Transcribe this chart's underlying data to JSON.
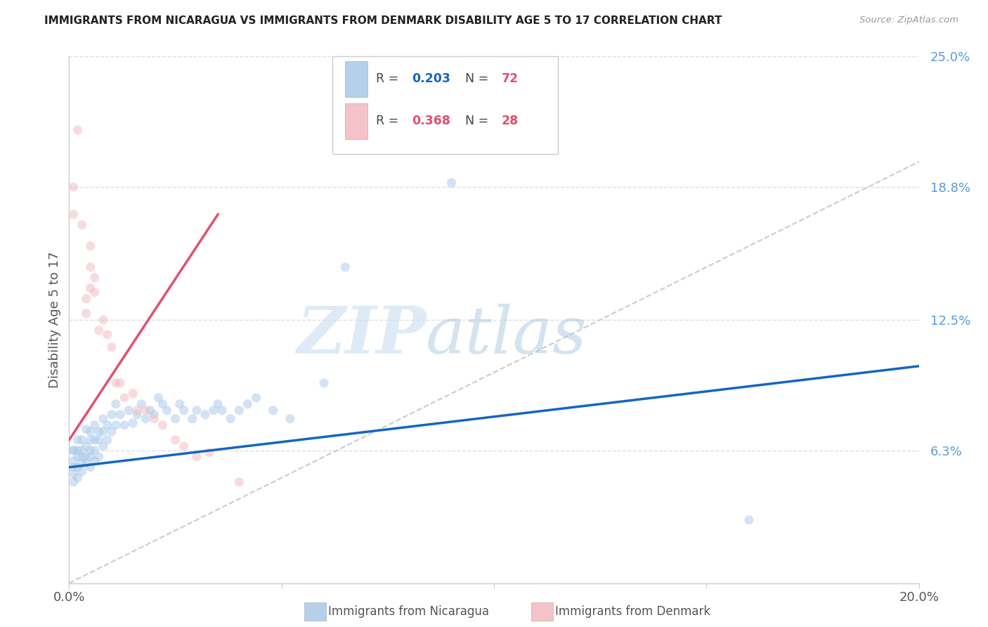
{
  "title": "IMMIGRANTS FROM NICARAGUA VS IMMIGRANTS FROM DENMARK DISABILITY AGE 5 TO 17 CORRELATION CHART",
  "source": "Source: ZipAtlas.com",
  "ylabel": "Disability Age 5 to 17",
  "x_min": 0.0,
  "x_max": 0.2,
  "y_min": 0.0,
  "y_max": 0.25,
  "x_tick_positions": [
    0.0,
    0.05,
    0.1,
    0.15,
    0.2
  ],
  "x_tick_labels": [
    "0.0%",
    "",
    "",
    "",
    "20.0%"
  ],
  "y_tick_vals_right": [
    0.063,
    0.125,
    0.188,
    0.25
  ],
  "y_tick_labels_right": [
    "6.3%",
    "12.5%",
    "18.8%",
    "25.0%"
  ],
  "color_nicaragua": "#a8c8e8",
  "color_denmark": "#f4b8c0",
  "color_trend_nicaragua": "#1565c0",
  "color_trend_denmark": "#e05070",
  "color_diagonal": "#cccccc",
  "nicaragua_x": [
    0.001,
    0.001,
    0.001,
    0.001,
    0.001,
    0.001,
    0.002,
    0.002,
    0.002,
    0.002,
    0.002,
    0.003,
    0.003,
    0.003,
    0.003,
    0.003,
    0.004,
    0.004,
    0.004,
    0.004,
    0.005,
    0.005,
    0.005,
    0.005,
    0.005,
    0.006,
    0.006,
    0.006,
    0.006,
    0.007,
    0.007,
    0.007,
    0.008,
    0.008,
    0.008,
    0.009,
    0.009,
    0.01,
    0.01,
    0.011,
    0.011,
    0.012,
    0.013,
    0.014,
    0.015,
    0.016,
    0.017,
    0.018,
    0.019,
    0.02,
    0.021,
    0.022,
    0.023,
    0.025,
    0.026,
    0.027,
    0.029,
    0.03,
    0.032,
    0.034,
    0.035,
    0.036,
    0.038,
    0.04,
    0.042,
    0.044,
    0.048,
    0.052,
    0.06,
    0.065,
    0.09,
    0.16
  ],
  "nicaragua_y": [
    0.063,
    0.063,
    0.058,
    0.055,
    0.052,
    0.048,
    0.063,
    0.06,
    0.055,
    0.05,
    0.068,
    0.063,
    0.06,
    0.057,
    0.053,
    0.068,
    0.065,
    0.06,
    0.057,
    0.073,
    0.068,
    0.063,
    0.06,
    0.055,
    0.072,
    0.068,
    0.063,
    0.058,
    0.075,
    0.072,
    0.068,
    0.06,
    0.078,
    0.072,
    0.065,
    0.075,
    0.068,
    0.08,
    0.072,
    0.085,
    0.075,
    0.08,
    0.075,
    0.082,
    0.076,
    0.08,
    0.085,
    0.078,
    0.082,
    0.08,
    0.088,
    0.085,
    0.082,
    0.078,
    0.085,
    0.082,
    0.078,
    0.082,
    0.08,
    0.082,
    0.085,
    0.082,
    0.078,
    0.082,
    0.085,
    0.088,
    0.082,
    0.078,
    0.095,
    0.15,
    0.19,
    0.03
  ],
  "denmark_x": [
    0.001,
    0.001,
    0.002,
    0.003,
    0.004,
    0.004,
    0.005,
    0.005,
    0.005,
    0.006,
    0.006,
    0.007,
    0.008,
    0.009,
    0.01,
    0.011,
    0.012,
    0.013,
    0.015,
    0.016,
    0.018,
    0.02,
    0.022,
    0.025,
    0.027,
    0.03,
    0.033,
    0.04
  ],
  "denmark_y": [
    0.188,
    0.175,
    0.215,
    0.17,
    0.135,
    0.128,
    0.16,
    0.15,
    0.14,
    0.145,
    0.138,
    0.12,
    0.125,
    0.118,
    0.112,
    0.095,
    0.095,
    0.088,
    0.09,
    0.082,
    0.082,
    0.078,
    0.075,
    0.068,
    0.065,
    0.06,
    0.062,
    0.048
  ],
  "trend_nicaragua_x0": 0.0,
  "trend_nicaragua_x1": 0.2,
  "trend_nicaragua_y0": 0.055,
  "trend_nicaragua_y1": 0.103,
  "trend_denmark_x0": 0.0,
  "trend_denmark_x1": 0.035,
  "trend_denmark_y0": 0.068,
  "trend_denmark_y1": 0.175,
  "background_color": "#ffffff",
  "grid_color": "#dddddd",
  "marker_size": 90,
  "marker_alpha": 0.5,
  "legend_r_nicaragua": "0.203",
  "legend_n_nicaragua": "72",
  "legend_r_denmark": "0.368",
  "legend_n_denmark": "28"
}
